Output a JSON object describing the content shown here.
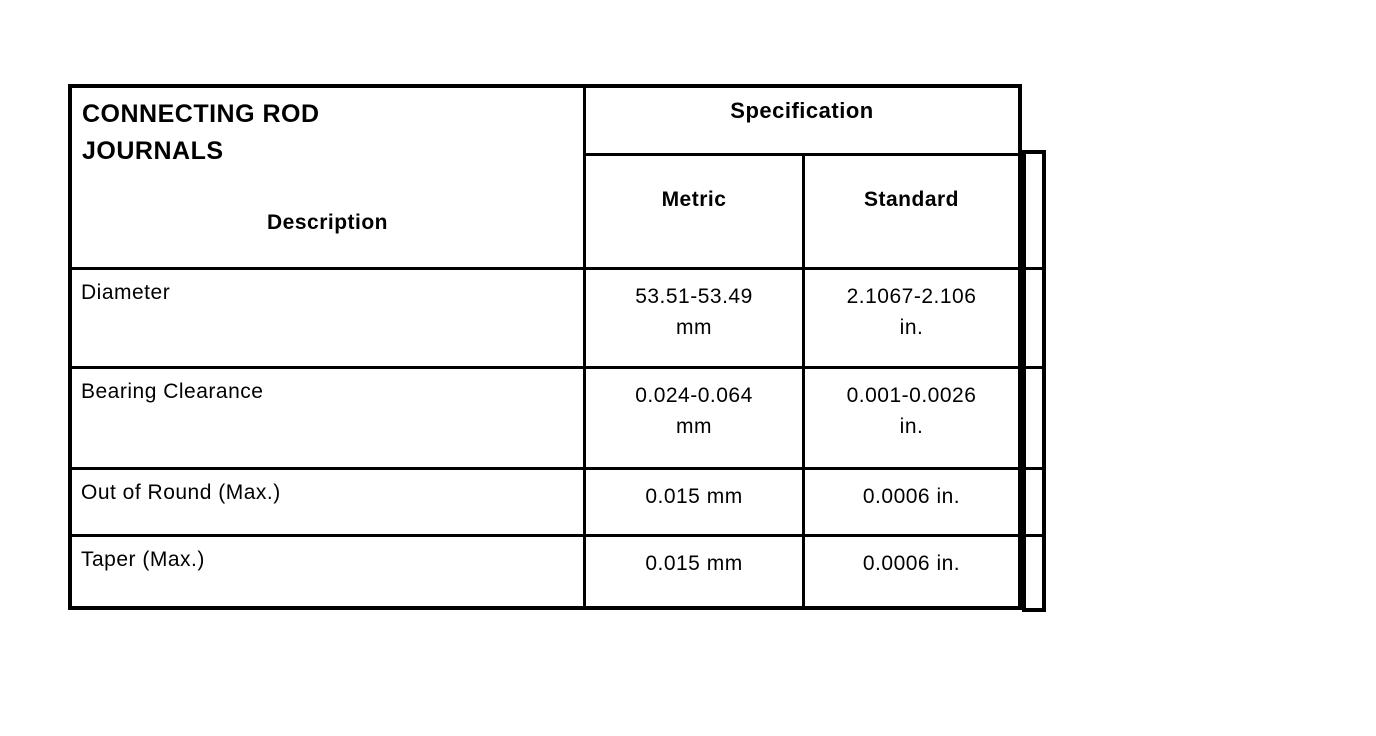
{
  "table": {
    "title": "CONNECTING ROD\nJOURNALS",
    "description_header": "Description",
    "specification_header": "Specification",
    "unit_columns": {
      "metric": "Metric",
      "standard": "Standard"
    },
    "rows": [
      {
        "description": "Diameter",
        "metric": "53.51-53.49\nmm",
        "standard": "2.1067-2.106\nin."
      },
      {
        "description": "Bearing Clearance",
        "metric": "0.024-0.064\nmm",
        "standard": "0.001-0.0026\nin."
      },
      {
        "description": "Out of Round (Max.)",
        "metric": "0.015 mm",
        "standard": "0.0006 in."
      },
      {
        "description": "Taper (Max.)",
        "metric": "0.015 mm",
        "standard": "0.0006 in."
      }
    ],
    "colors": {
      "border": "#000000",
      "text": "#000000",
      "background": "#ffffff"
    }
  }
}
